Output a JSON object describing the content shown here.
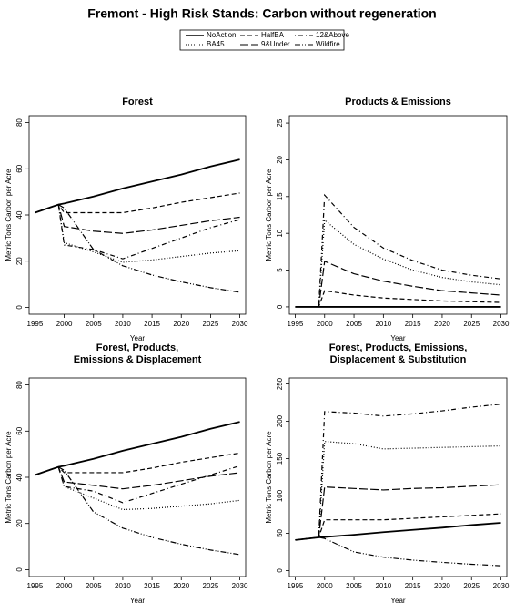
{
  "title": "Fremont  - High Risk Stands: Carbon without regeneration",
  "chart_data": [
    {
      "type": "line",
      "title": "Forest",
      "x_label": "Year",
      "y_label": "Metric Tons Carbon per Acre",
      "x": [
        1995,
        1999,
        2000,
        2005,
        2010,
        2015,
        2020,
        2025,
        2030
      ],
      "xlim": [
        1994,
        2031
      ],
      "xticks": [
        1995,
        2000,
        2005,
        2010,
        2015,
        2020,
        2025,
        2030
      ],
      "ylim": [
        -3,
        83
      ],
      "yticks": [
        0,
        20,
        40,
        60,
        80
      ],
      "series": [
        {
          "name": "NoAction",
          "color": "#000000",
          "dash": "solid",
          "values": [
            41,
            44.5,
            45,
            48,
            51.5,
            54.5,
            57.5,
            61,
            64
          ]
        },
        {
          "name": "BA45",
          "color": "#000000",
          "dash": "dotted",
          "values": [
            41,
            44.5,
            28,
            24,
            19.5,
            20.5,
            22,
            23.5,
            24.5
          ]
        },
        {
          "name": "HalfBA",
          "color": "#000000",
          "dash": "dashed",
          "values": [
            41,
            44.5,
            41,
            41,
            41,
            43,
            45.5,
            47.5,
            49.5
          ]
        },
        {
          "name": "9&Under",
          "color": "#000000",
          "dash": "longdash",
          "values": [
            41,
            44.5,
            35,
            33,
            32,
            33.5,
            35.5,
            37.5,
            39
          ]
        },
        {
          "name": "12&Above",
          "color": "#000000",
          "dash": "dotdash",
          "values": [
            41,
            44.5,
            27,
            25,
            21,
            25.5,
            30,
            34.5,
            38
          ]
        },
        {
          "name": "Wildfire",
          "color": "#000000",
          "dash": "twodash",
          "values": [
            41,
            44.5,
            43,
            25,
            18,
            14,
            11,
            8.5,
            6.5
          ]
        }
      ]
    },
    {
      "type": "line",
      "title": "Products & Emissions",
      "x_label": "Year",
      "y_label": "Metric Tons Carbon per Acre",
      "x": [
        1995,
        1999,
        2000,
        2005,
        2010,
        2015,
        2020,
        2025,
        2030
      ],
      "xlim": [
        1994,
        2031
      ],
      "xticks": [
        1995,
        2000,
        2005,
        2010,
        2015,
        2020,
        2025,
        2030
      ],
      "ylim": [
        -1,
        26
      ],
      "yticks": [
        0,
        5,
        10,
        15,
        20,
        25
      ],
      "series": [
        {
          "name": "NoAction",
          "color": "#000000",
          "dash": "solid",
          "values": [
            0,
            0,
            0,
            0,
            0,
            0,
            0,
            0,
            0
          ]
        },
        {
          "name": "BA45",
          "color": "#000000",
          "dash": "dotted",
          "values": [
            0,
            0,
            11.8,
            8.5,
            6.5,
            5,
            4,
            3.4,
            3
          ]
        },
        {
          "name": "HalfBA",
          "color": "#000000",
          "dash": "dashed",
          "values": [
            0,
            0,
            2.2,
            1.6,
            1.2,
            1,
            0.8,
            0.7,
            0.6
          ]
        },
        {
          "name": "9&Under",
          "color": "#000000",
          "dash": "longdash",
          "values": [
            0,
            0,
            6.2,
            4.5,
            3.5,
            2.8,
            2.2,
            1.9,
            1.6
          ]
        },
        {
          "name": "12&Above",
          "color": "#000000",
          "dash": "dotdash",
          "values": [
            0,
            0,
            15.2,
            10.8,
            8,
            6.3,
            5,
            4.3,
            3.8
          ]
        },
        {
          "name": "Wildfire",
          "color": "#000000",
          "dash": "twodash",
          "values": [
            0,
            0,
            0,
            0,
            0,
            0,
            0,
            0,
            0
          ]
        }
      ]
    },
    {
      "type": "line",
      "title": [
        "Forest, Products,",
        "Emissions & Displacement"
      ],
      "x_label": "Year",
      "y_label": "Metric Tons Carbon per Acre",
      "x": [
        1995,
        1999,
        2000,
        2005,
        2010,
        2015,
        2020,
        2025,
        2030
      ],
      "xlim": [
        1994,
        2031
      ],
      "xticks": [
        1995,
        2000,
        2005,
        2010,
        2015,
        2020,
        2025,
        2030
      ],
      "ylim": [
        -3,
        83
      ],
      "yticks": [
        0,
        20,
        40,
        60,
        80
      ],
      "series": [
        {
          "name": "NoAction",
          "color": "#000000",
          "dash": "solid",
          "values": [
            41,
            44.5,
            45,
            48,
            51.5,
            54.5,
            57.5,
            61,
            64
          ]
        },
        {
          "name": "BA45",
          "color": "#000000",
          "dash": "dotted",
          "values": [
            41,
            44.5,
            36,
            31,
            26,
            26.5,
            27.5,
            28.5,
            30
          ]
        },
        {
          "name": "HalfBA",
          "color": "#000000",
          "dash": "dashed",
          "values": [
            41,
            44.5,
            42,
            42,
            42,
            44,
            46.5,
            48.5,
            50.5
          ]
        },
        {
          "name": "9&Under",
          "color": "#000000",
          "dash": "longdash",
          "values": [
            41,
            44.5,
            38,
            36.5,
            35,
            36.5,
            38.5,
            40.5,
            42
          ]
        },
        {
          "name": "12&Above",
          "color": "#000000",
          "dash": "dotdash",
          "values": [
            41,
            44.5,
            36,
            34,
            29,
            33,
            37,
            41,
            45
          ]
        },
        {
          "name": "Wildfire",
          "color": "#000000",
          "dash": "twodash",
          "values": [
            41,
            44.5,
            43,
            25,
            18,
            14,
            11,
            8.5,
            6.5
          ]
        }
      ]
    },
    {
      "type": "line",
      "title": [
        "Forest, Products, Emissions,",
        "Displacement & Substitution"
      ],
      "x_label": "Year",
      "y_label": "Metric Tons Carbon per Acre",
      "x": [
        1995,
        1999,
        2000,
        2005,
        2010,
        2015,
        2020,
        2025,
        2030
      ],
      "xlim": [
        1994,
        2031
      ],
      "xticks": [
        1995,
        2000,
        2005,
        2010,
        2015,
        2020,
        2025,
        2030
      ],
      "ylim": [
        -8,
        258
      ],
      "yticks": [
        0,
        50,
        100,
        150,
        200,
        250
      ],
      "series": [
        {
          "name": "NoAction",
          "color": "#000000",
          "dash": "solid",
          "values": [
            41,
            44.5,
            45,
            48,
            51.5,
            54.5,
            57.5,
            61,
            64
          ]
        },
        {
          "name": "BA45",
          "color": "#000000",
          "dash": "dotted",
          "values": [
            41,
            44.5,
            173,
            170,
            163,
            164,
            165,
            166,
            167
          ]
        },
        {
          "name": "HalfBA",
          "color": "#000000",
          "dash": "dashed",
          "values": [
            41,
            44.5,
            68,
            68,
            68,
            70,
            72,
            74,
            76
          ]
        },
        {
          "name": "9&Under",
          "color": "#000000",
          "dash": "longdash",
          "values": [
            41,
            44.5,
            112,
            110,
            108,
            110,
            111,
            113,
            115
          ]
        },
        {
          "name": "12&Above",
          "color": "#000000",
          "dash": "dotdash",
          "values": [
            41,
            44.5,
            213,
            211,
            207,
            210,
            214,
            219,
            223
          ]
        },
        {
          "name": "Wildfire",
          "color": "#000000",
          "dash": "twodash",
          "values": [
            41,
            44.5,
            43,
            25,
            18,
            14,
            11,
            8.5,
            6.5
          ]
        }
      ]
    }
  ]
}
